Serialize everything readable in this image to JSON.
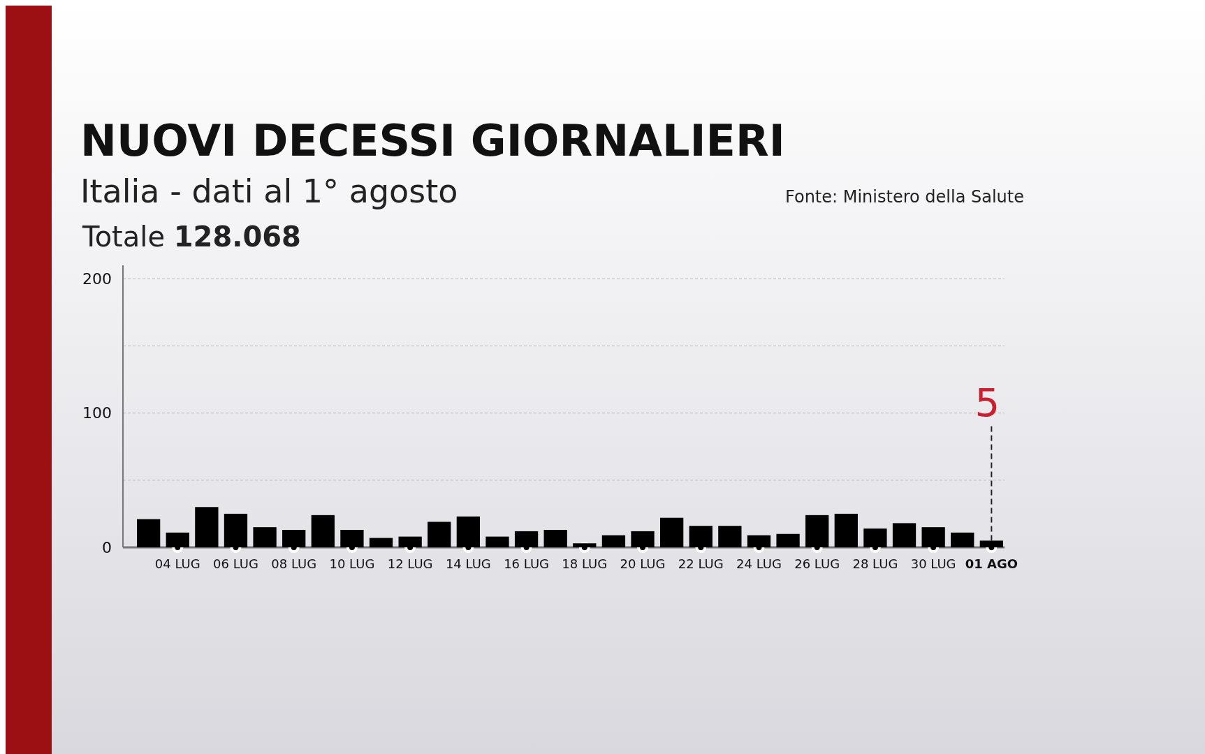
{
  "chart_data": {
    "type": "bar",
    "title": "NUOVI DECESSI GIORNALIERI",
    "subtitle": "Italia - dati al 1° agosto",
    "annotations": [
      "Totale 128.068",
      "Fonte: Ministero della Salute",
      {
        "text": "5",
        "x": "01 AGO",
        "y": 5
      }
    ],
    "categories": [
      null,
      "04 LUG",
      null,
      "06 LUG",
      null,
      "08 LUG",
      null,
      "10 LUG",
      null,
      "12 LUG",
      null,
      "14 LUG",
      null,
      "16 LUG",
      null,
      "18 LUG",
      null,
      "20 LUG",
      null,
      "22 LUG",
      null,
      "24 LUG",
      null,
      "26 LUG",
      null,
      "28 LUG",
      null,
      "30 LUG",
      null,
      "01 AGO"
    ],
    "values": [
      21,
      11,
      30,
      25,
      15,
      13,
      24,
      13,
      7,
      8,
      19,
      23,
      8,
      12,
      13,
      3,
      9,
      12,
      22,
      16,
      16,
      9,
      10,
      24,
      25,
      14,
      18,
      15,
      11,
      5
    ],
    "color": "#000000",
    "ylim": [
      0,
      210
    ],
    "yticks": [
      0,
      {
        "value": 50,
        "label": null
      },
      100,
      {
        "value": 150,
        "label": null
      },
      200
    ],
    "grid": "y"
  }
}
